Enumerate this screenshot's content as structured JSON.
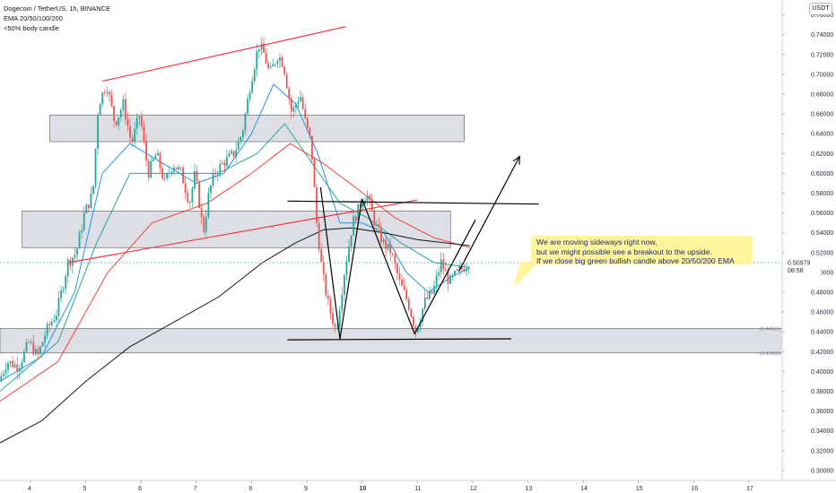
{
  "header": {
    "symbol_line": "Dogecoin / TetherUS, 1h, BINANCE",
    "ema_line": "EMA 20/50/100/200",
    "candle_line": "&lt;50% body candle",
    "currency": "USDT"
  },
  "annotation": {
    "line1": "We are moving sideways right now,",
    "line2": "but we might possible see a breakout to the upside.",
    "line3": "If we close big green bullish candle above 20/50/200 EMA"
  },
  "price_tag": {
    "price": "0.50979",
    "countdown": "08:58",
    "color": "#26a69a"
  },
  "zone_tags": [
    "(0.44331)",
    "(0.41866)"
  ],
  "colors": {
    "bull": "#26a69a",
    "bear": "#ef5350",
    "trendline": "#f23645",
    "ema_fast": "#2196f3",
    "ema_mid": "#26a69a",
    "ema_slow": "#f44336",
    "ema_200": "#131722",
    "zone_fill": "#d1d4dc",
    "annotation_bg": "#fff59d",
    "annotation_text": "#1e2a6e"
  },
  "chart_data": {
    "type": "candlestick",
    "title": "Dogecoin / TetherUS, 1h, BINANCE",
    "x_ticks": [
      "4",
      "5",
      "6",
      "7",
      "8",
      "9",
      "10",
      "11",
      "12",
      "13",
      "14",
      "15",
      "16",
      "17"
    ],
    "y_ticks": [
      "0.76000",
      "0.74000",
      "0.72000",
      "0.70000",
      "0.68000",
      "0.66000",
      "0.64000",
      "0.62000",
      "0.60000",
      "0.58000",
      "0.56000",
      "0.54000",
      "0.52000",
      "0.50000",
      "0.48000",
      "0.46000",
      "0.44000",
      "0.42000",
      "0.40000",
      "0.38000",
      "0.36000",
      "0.34000",
      "0.32000",
      "0.30000"
    ],
    "ylim": [
      0.29,
      0.775
    ],
    "xlim": [
      3.45,
      17.6
    ],
    "last_price": 0.50979,
    "price_path": [
      [
        3.45,
        0.39
      ],
      [
        3.6,
        0.41
      ],
      [
        3.8,
        0.405
      ],
      [
        4.0,
        0.43
      ],
      [
        4.15,
        0.415
      ],
      [
        4.3,
        0.44
      ],
      [
        4.5,
        0.46
      ],
      [
        4.7,
        0.51
      ],
      [
        4.85,
        0.52
      ],
      [
        5.0,
        0.56
      ],
      [
        5.15,
        0.58
      ],
      [
        5.25,
        0.67
      ],
      [
        5.4,
        0.69
      ],
      [
        5.55,
        0.65
      ],
      [
        5.7,
        0.67
      ],
      [
        5.85,
        0.63
      ],
      [
        6.0,
        0.66
      ],
      [
        6.15,
        0.6
      ],
      [
        6.3,
        0.62
      ],
      [
        6.45,
        0.59
      ],
      [
        6.6,
        0.61
      ],
      [
        6.75,
        0.6
      ],
      [
        6.9,
        0.57
      ],
      [
        7.0,
        0.6
      ],
      [
        7.15,
        0.54
      ],
      [
        7.25,
        0.58
      ],
      [
        7.35,
        0.6
      ],
      [
        7.5,
        0.61
      ],
      [
        7.7,
        0.62
      ],
      [
        7.85,
        0.64
      ],
      [
        8.0,
        0.69
      ],
      [
        8.15,
        0.73
      ],
      [
        8.25,
        0.72
      ],
      [
        8.35,
        0.7
      ],
      [
        8.5,
        0.72
      ],
      [
        8.6,
        0.71
      ],
      [
        8.75,
        0.66
      ],
      [
        8.9,
        0.68
      ],
      [
        9.0,
        0.65
      ],
      [
        9.1,
        0.63
      ],
      [
        9.2,
        0.55
      ],
      [
        9.3,
        0.5
      ],
      [
        9.4,
        0.47
      ],
      [
        9.55,
        0.44
      ],
      [
        9.7,
        0.5
      ],
      [
        9.85,
        0.55
      ],
      [
        10.0,
        0.57
      ],
      [
        10.1,
        0.58
      ],
      [
        10.25,
        0.55
      ],
      [
        10.4,
        0.53
      ],
      [
        10.55,
        0.52
      ],
      [
        10.7,
        0.49
      ],
      [
        10.85,
        0.47
      ],
      [
        11.0,
        0.44
      ],
      [
        11.15,
        0.47
      ],
      [
        11.3,
        0.48
      ],
      [
        11.45,
        0.51
      ],
      [
        11.6,
        0.49
      ],
      [
        11.75,
        0.5
      ],
      [
        11.95,
        0.51
      ]
    ],
    "series": [
      {
        "name": "EMA 20",
        "color": "#2196f3",
        "points": [
          [
            3.45,
            0.39
          ],
          [
            4.2,
            0.415
          ],
          [
            4.8,
            0.48
          ],
          [
            5.3,
            0.6
          ],
          [
            5.8,
            0.63
          ],
          [
            6.4,
            0.61
          ],
          [
            7.0,
            0.59
          ],
          [
            7.5,
            0.6
          ],
          [
            8.0,
            0.64
          ],
          [
            8.4,
            0.69
          ],
          [
            8.8,
            0.67
          ],
          [
            9.2,
            0.62
          ],
          [
            9.6,
            0.55
          ],
          [
            10.0,
            0.55
          ],
          [
            10.4,
            0.54
          ],
          [
            10.8,
            0.5
          ],
          [
            11.2,
            0.48
          ],
          [
            11.6,
            0.495
          ],
          [
            11.95,
            0.505
          ]
        ]
      },
      {
        "name": "EMA 50",
        "color": "#26a69a",
        "points": [
          [
            3.45,
            0.38
          ],
          [
            4.5,
            0.43
          ],
          [
            5.2,
            0.53
          ],
          [
            5.8,
            0.6
          ],
          [
            6.6,
            0.6
          ],
          [
            7.4,
            0.6
          ],
          [
            8.1,
            0.62
          ],
          [
            8.6,
            0.65
          ],
          [
            9.1,
            0.61
          ],
          [
            9.6,
            0.57
          ],
          [
            10.1,
            0.555
          ],
          [
            10.7,
            0.53
          ],
          [
            11.3,
            0.51
          ],
          [
            11.95,
            0.505
          ]
        ]
      },
      {
        "name": "EMA 100",
        "color": "#f44336",
        "points": [
          [
            3.45,
            0.37
          ],
          [
            4.5,
            0.41
          ],
          [
            5.4,
            0.5
          ],
          [
            6.2,
            0.55
          ],
          [
            7.2,
            0.57
          ],
          [
            8.0,
            0.6
          ],
          [
            8.7,
            0.63
          ],
          [
            9.3,
            0.61
          ],
          [
            9.9,
            0.585
          ],
          [
            10.6,
            0.555
          ],
          [
            11.3,
            0.535
          ],
          [
            11.95,
            0.525
          ]
        ]
      },
      {
        "name": "EMA 200",
        "color": "#131722",
        "points": [
          [
            3.45,
            0.328
          ],
          [
            4.2,
            0.35
          ],
          [
            5.0,
            0.39
          ],
          [
            5.8,
            0.425
          ],
          [
            6.6,
            0.45
          ],
          [
            7.4,
            0.475
          ],
          [
            8.2,
            0.51
          ],
          [
            8.8,
            0.53
          ],
          [
            9.3,
            0.543
          ],
          [
            9.8,
            0.545
          ],
          [
            10.4,
            0.54
          ],
          [
            11.0,
            0.533
          ],
          [
            11.95,
            0.527
          ]
        ]
      }
    ],
    "zones": [
      {
        "x": [
          4.35,
          11.85
        ],
        "y": [
          0.632,
          0.659
        ]
      },
      {
        "x": [
          3.85,
          11.6
        ],
        "y": [
          0.525,
          0.562
        ]
      },
      {
        "x": [
          3.45,
          17.6
        ],
        "y": [
          0.41866,
          0.44331
        ]
      }
    ],
    "trendlines": [
      {
        "color": "#f23645",
        "points": [
          [
            5.3,
            0.693
          ],
          [
            9.7,
            0.748
          ]
        ]
      },
      {
        "color": "#f23645",
        "points": [
          [
            4.7,
            0.51
          ],
          [
            11.0,
            0.573
          ]
        ]
      },
      {
        "color": "#000000",
        "points": [
          [
            8.65,
            0.572
          ],
          [
            13.2,
            0.569
          ]
        ]
      },
      {
        "color": "#000000",
        "points": [
          [
            8.65,
            0.432
          ],
          [
            12.7,
            0.433
          ]
        ]
      },
      {
        "color": "#000000",
        "points": [
          [
            9.25,
            0.586
          ],
          [
            9.6,
            0.433
          ],
          [
            10.0,
            0.574
          ],
          [
            10.95,
            0.438
          ],
          [
            12.05,
            0.553
          ]
        ],
        "note": ""
      }
    ],
    "arrow": {
      "points": [
        [
          11.75,
          0.501
        ],
        [
          12.85,
          0.617
        ]
      ]
    }
  }
}
